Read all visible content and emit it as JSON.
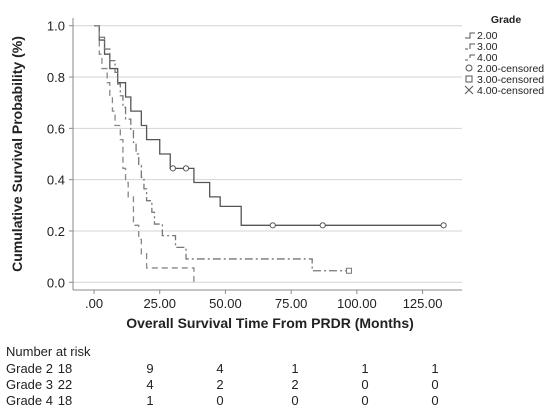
{
  "chart_data": {
    "type": "line",
    "subtype": "kaplan-meier",
    "xlabel": "Overall Survival Time From PRDR (Months)",
    "ylabel": "Cumulative Survival Probability (%)",
    "xlim": [
      -8,
      140
    ],
    "ylim": [
      -0.03,
      1.03
    ],
    "x_ticks": [
      0,
      25,
      50,
      75,
      100,
      125
    ],
    "x_tick_labels": [
      ".00",
      "25.00",
      "50.00",
      "75.00",
      "100.00",
      "125.00"
    ],
    "y_ticks": [
      0,
      0.2,
      0.4,
      0.6,
      0.8,
      1.0
    ],
    "y_tick_labels": [
      "0.0",
      "0.2",
      "0.4",
      "0.6",
      "0.8",
      "1.0"
    ],
    "grid": "horizontal",
    "legend_title": "Grade",
    "legend_position": "top-right",
    "legend_entries": [
      "2.00",
      "3.00",
      "4.00",
      "2.00-censored",
      "3.00-censored",
      "4.00-censored"
    ],
    "series": [
      {
        "name": "2.00",
        "style": "solid",
        "color": "#555555",
        "steps": [
          [
            0,
            1.0
          ],
          [
            2,
            0.944
          ],
          [
            4,
            0.889
          ],
          [
            6,
            0.833
          ],
          [
            9,
            0.778
          ],
          [
            12,
            0.722
          ],
          [
            14,
            0.667
          ],
          [
            18,
            0.611
          ],
          [
            20,
            0.556
          ],
          [
            25,
            0.5
          ],
          [
            29,
            0.444
          ],
          [
            38,
            0.389
          ],
          [
            44,
            0.333
          ],
          [
            48,
            0.296
          ],
          [
            56,
            0.222
          ],
          [
            133,
            0.222
          ]
        ],
        "censored": [
          [
            30,
            0.444
          ],
          [
            35,
            0.444
          ],
          [
            68,
            0.222
          ],
          [
            87,
            0.222
          ],
          [
            133,
            0.222
          ]
        ]
      },
      {
        "name": "3.00",
        "style": "dashdot",
        "color": "#777777",
        "steps": [
          [
            0,
            1.0
          ],
          [
            2,
            0.955
          ],
          [
            4,
            0.909
          ],
          [
            6,
            0.864
          ],
          [
            8,
            0.818
          ],
          [
            9,
            0.773
          ],
          [
            10,
            0.727
          ],
          [
            11,
            0.682
          ],
          [
            12,
            0.636
          ],
          [
            14,
            0.591
          ],
          [
            15,
            0.545
          ],
          [
            16,
            0.5
          ],
          [
            17,
            0.455
          ],
          [
            18,
            0.409
          ],
          [
            19,
            0.364
          ],
          [
            20,
            0.318
          ],
          [
            22,
            0.273
          ],
          [
            23,
            0.227
          ],
          [
            26,
            0.182
          ],
          [
            31,
            0.136
          ],
          [
            35,
            0.091
          ],
          [
            82,
            0.091
          ],
          [
            83,
            0.045
          ],
          [
            97,
            0.045
          ]
        ],
        "censored": [
          [
            97,
            0.045
          ]
        ]
      },
      {
        "name": "4.00",
        "style": "dashed",
        "color": "#888888",
        "steps": [
          [
            0,
            1.0
          ],
          [
            2,
            0.889
          ],
          [
            3,
            0.833
          ],
          [
            5,
            0.778
          ],
          [
            6,
            0.722
          ],
          [
            7,
            0.667
          ],
          [
            8,
            0.611
          ],
          [
            10,
            0.556
          ],
          [
            11,
            0.444
          ],
          [
            12,
            0.389
          ],
          [
            13,
            0.333
          ],
          [
            15,
            0.222
          ],
          [
            17,
            0.167
          ],
          [
            18,
            0.111
          ],
          [
            20,
            0.056
          ],
          [
            38,
            0.056
          ],
          [
            38,
            0.0
          ]
        ],
        "censored": []
      }
    ]
  },
  "risk_table": {
    "title": "Number at risk",
    "rows": [
      {
        "label": "Grade 2",
        "values": [
          "18",
          "9",
          "4",
          "1",
          "1",
          "1"
        ]
      },
      {
        "label": "Grade 3",
        "values": [
          "22",
          "4",
          "2",
          "2",
          "0",
          "0"
        ]
      },
      {
        "label": "Grade 4",
        "values": [
          "18",
          "1",
          "0",
          "0",
          "0",
          "0"
        ]
      }
    ]
  }
}
